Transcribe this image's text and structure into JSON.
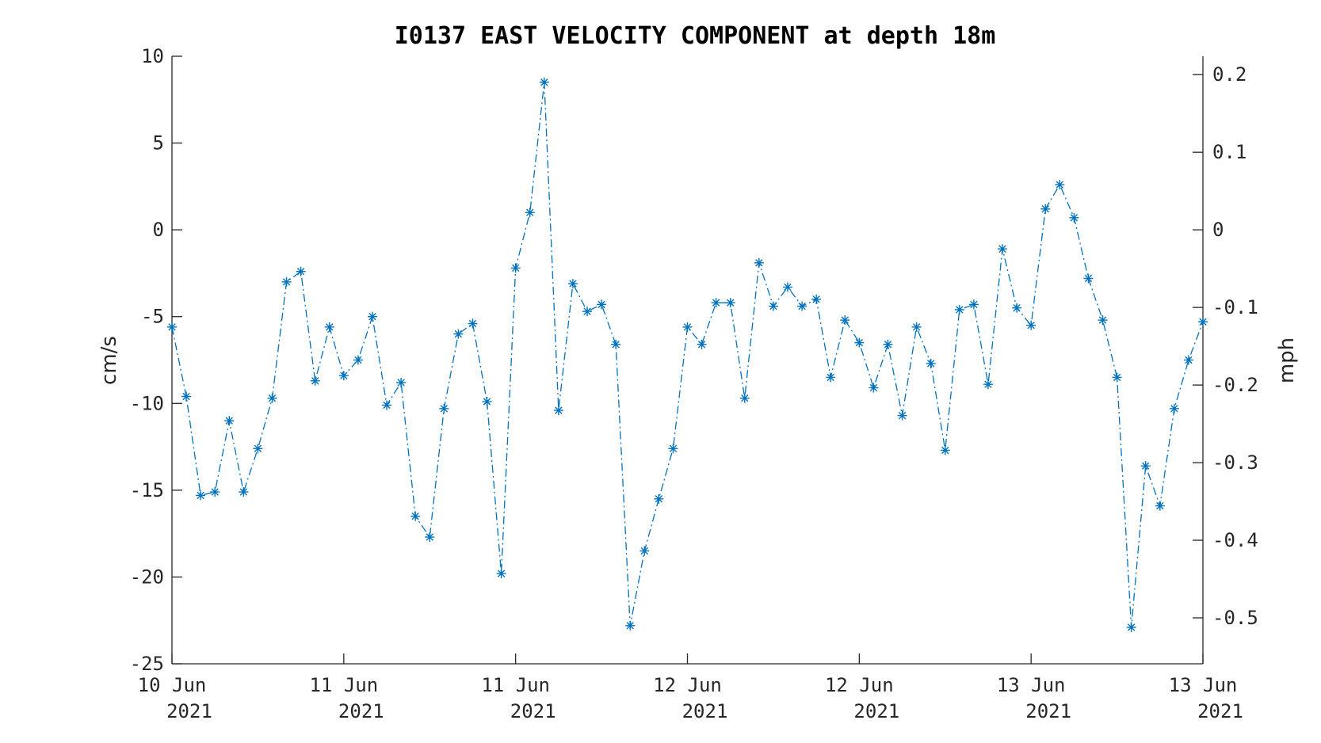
{
  "chart_data": {
    "type": "line",
    "title": "I0137 EAST VELOCITY COMPONENT at depth 18m",
    "ylabel": "cm/s",
    "ylabel_right": "mph",
    "ylim": [
      -25,
      10
    ],
    "ylim_right": [
      -0.5592,
      0.2237
    ],
    "yticks": [
      -25,
      -20,
      -15,
      -10,
      -5,
      0,
      5,
      10
    ],
    "yticks_right": [
      -0.5,
      -0.4,
      -0.3,
      -0.2,
      -0.1,
      0,
      0.1,
      0.2
    ],
    "yticklabels_right": [
      "-0.5",
      "-0.4",
      "-0.3",
      "-0.2",
      "-0.1",
      "0",
      "0.1",
      "0.2"
    ],
    "xticks": [
      {
        "line1": "10 Jun",
        "line2": "2021"
      },
      {
        "line1": "11 Jun",
        "line2": "2021"
      },
      {
        "line1": "11 Jun",
        "line2": "2021"
      },
      {
        "line1": "12 Jun",
        "line2": "2021"
      },
      {
        "line1": "12 Jun",
        "line2": "2021"
      },
      {
        "line1": "13 Jun",
        "line2": "2021"
      },
      {
        "line1": "13 Jun",
        "line2": "2021"
      }
    ],
    "grid": false,
    "marker": "asterisk",
    "line_style": "dash-dot",
    "color": "#0072BD",
    "series": [
      {
        "values": [
          -5.6,
          -9.6,
          -15.3,
          -15.1,
          -11.0,
          -15.1,
          -12.6,
          -9.7,
          -3.0,
          -2.4,
          -8.7,
          -5.6,
          -8.4,
          -7.5,
          -5.0,
          -10.1,
          -8.8,
          -16.5,
          -17.7,
          -10.3,
          -6.0,
          -5.4,
          -9.9,
          -19.8,
          -2.2,
          1.0,
          8.5,
          -10.4,
          -3.1,
          -4.7,
          -4.3,
          -6.6,
          -22.8,
          -18.5,
          -15.5,
          -12.6,
          -5.6,
          -6.6,
          -4.2,
          -4.2,
          -9.7,
          -1.9,
          -4.4,
          -3.3,
          -4.4,
          -4.0,
          -8.5,
          -5.2,
          -6.5,
          -9.1,
          -6.6,
          -10.7,
          -5.6,
          -7.7,
          -12.7,
          -4.6,
          -4.3,
          -8.9,
          -1.1,
          -4.5,
          -5.5,
          1.2,
          2.6,
          0.7,
          -2.8,
          -5.2,
          -8.5,
          -22.9,
          -13.6,
          -15.9,
          -10.3,
          -7.5,
          -5.3
        ]
      }
    ]
  }
}
